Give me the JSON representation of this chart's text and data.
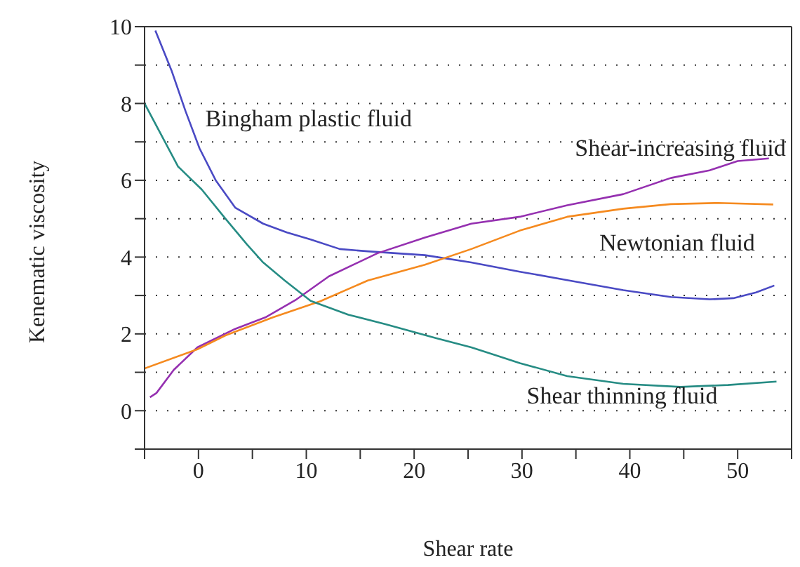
{
  "chart_data": {
    "type": "line",
    "xlabel": "Shear rate",
    "ylabel": "Kenematic viscosity",
    "xlim": [
      -5,
      55
    ],
    "xticks": [
      {
        "value": -5,
        "label": null
      },
      0,
      {
        "value": 5,
        "label": null
      },
      10,
      {
        "value": 15,
        "label": null
      },
      20,
      {
        "value": 25,
        "label": null
      },
      30,
      {
        "value": 35,
        "label": null
      },
      40,
      {
        "value": 45,
        "label": null
      },
      50,
      {
        "value": 55,
        "label": null
      }
    ],
    "ylim": [
      -1,
      10
    ],
    "yticks": [
      {
        "value": -1,
        "label": null
      },
      0,
      {
        "value": 1,
        "label": null
      },
      2,
      {
        "value": 3,
        "label": null
      },
      4,
      {
        "value": 5,
        "label": null
      },
      6,
      {
        "value": 7,
        "label": null
      },
      8,
      {
        "value": 9,
        "label": null
      },
      10
    ],
    "grid": "y",
    "legend": false,
    "marker": "none",
    "line_style": "solid",
    "series": [
      {
        "name": "Bingham plastic fluid",
        "color": "#4a4ac4",
        "x": [
          -4,
          -2.5,
          -1.2,
          0.1,
          1.6,
          3.4,
          6,
          8.2,
          10.4,
          13.1,
          15.7,
          18.3,
          21,
          25.3,
          29.8,
          34.2,
          39.4,
          43.8,
          47.4,
          49.6,
          51.7,
          53.4
        ],
        "values": [
          9.9,
          8.86,
          7.8,
          6.83,
          6,
          5.29,
          4.87,
          4.64,
          4.46,
          4.21,
          4.15,
          4.1,
          4.05,
          3.86,
          3.62,
          3.4,
          3.14,
          2.96,
          2.9,
          2.93,
          3.08,
          3.26
        ]
      },
      {
        "name": "Shear-increasing fluid",
        "color": "#9530b0",
        "x": [
          -4.5,
          -3.9,
          -2.3,
          -0.1,
          3.4,
          6.2,
          9.1,
          12.1,
          16.6,
          21,
          25.3,
          29.8,
          34.2,
          39.4,
          43.8,
          47.4,
          50,
          52.9
        ],
        "values": [
          0.35,
          0.46,
          1.06,
          1.65,
          2.13,
          2.43,
          2.9,
          3.5,
          4.1,
          4.51,
          4.87,
          5.05,
          5.35,
          5.64,
          6.06,
          6.26,
          6.5,
          6.57
        ]
      },
      {
        "name": "Newtonian fluid",
        "color": "#f58a1f",
        "x": [
          -5,
          -0.1,
          2.5,
          6.9,
          11.3,
          15.7,
          21,
          25.3,
          29.8,
          34.2,
          39.4,
          43.8,
          48.2,
          53.3
        ],
        "values": [
          1.1,
          1.6,
          1.96,
          2.43,
          2.85,
          3.39,
          3.8,
          4.21,
          4.69,
          5.05,
          5.26,
          5.38,
          5.41,
          5.37
        ]
      },
      {
        "name": "Shear thinning fluid",
        "color": "#268c84",
        "x": [
          -5,
          -1.9,
          0.3,
          2.5,
          4.5,
          6,
          8,
          10.4,
          13.9,
          17.4,
          22,
          25.3,
          29.8,
          34.2,
          39.4,
          44.7,
          49.1,
          53.6
        ],
        "values": [
          8,
          6.36,
          5.76,
          5,
          4.33,
          3.86,
          3.39,
          2.86,
          2.5,
          2.25,
          1.89,
          1.65,
          1.24,
          0.9,
          0.7,
          0.62,
          0.67,
          0.76
        ]
      }
    ]
  }
}
